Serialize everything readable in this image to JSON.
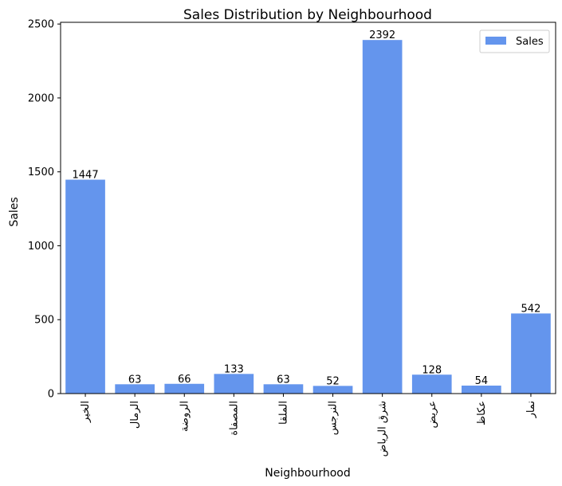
{
  "chart_data": {
    "type": "bar",
    "title": "Sales Distribution by Neighbourhood",
    "xlabel": "Neighbourhood",
    "ylabel": "Sales",
    "categories": [
      "الخير",
      "الرمال",
      "الروضة",
      "المصفاة",
      "الملقا",
      "النرجس",
      "شرق الرياض",
      "عريض",
      "عكاظ",
      "نمار"
    ],
    "series": [
      {
        "name": "Sales",
        "values": [
          1447,
          63,
          66,
          133,
          63,
          52,
          2392,
          128,
          54,
          542
        ]
      }
    ],
    "ylim": [
      0,
      2511.6
    ],
    "yticks": [
      0,
      500,
      1000,
      1500,
      2000,
      2500
    ],
    "grid": false,
    "legend_position": "top-right",
    "bar_color": "#6495ed"
  }
}
